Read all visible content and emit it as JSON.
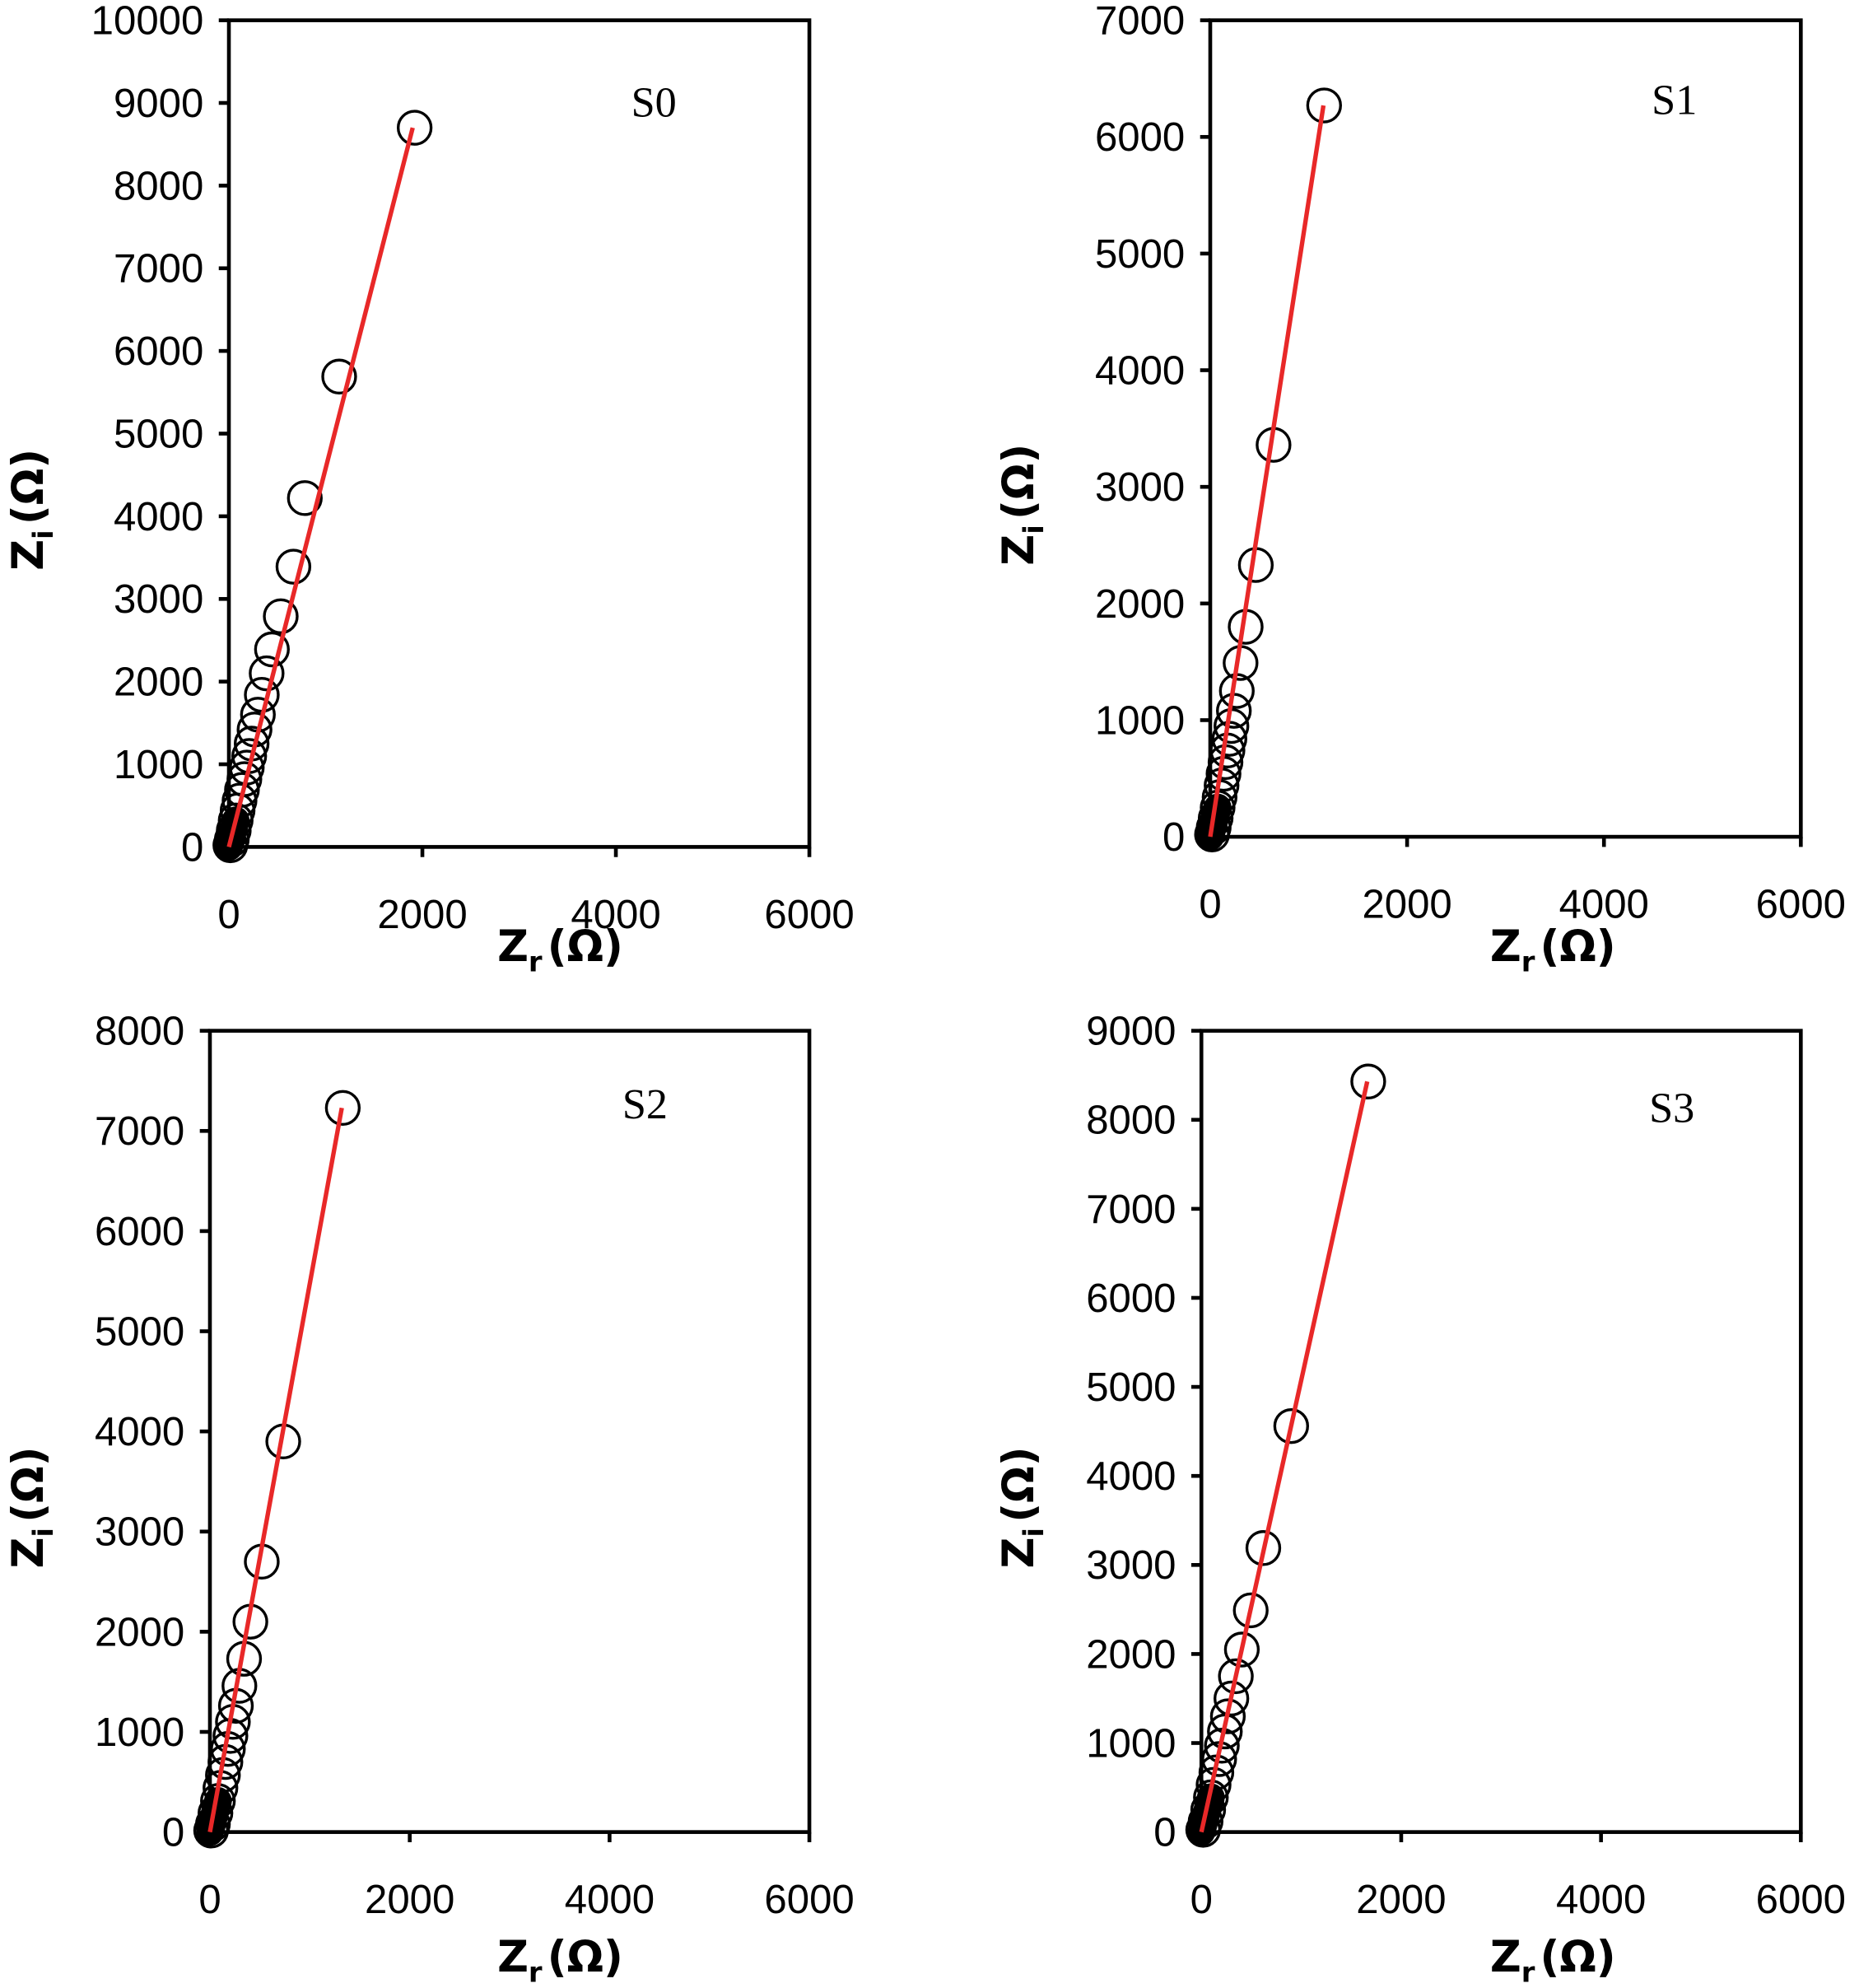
{
  "chart_data": [
    {
      "type": "scatter",
      "panel": "S0",
      "title": "",
      "annotation": "S0",
      "xlabel": "Z_r (Ω)",
      "ylabel": "Z_i (Ω)",
      "xlim": [
        0,
        6000
      ],
      "ylim": [
        0,
        10000
      ],
      "xticks": [
        0,
        2000,
        4000,
        6000
      ],
      "yticks": [
        0,
        1000,
        2000,
        3000,
        4000,
        5000,
        6000,
        7000,
        8000,
        9000,
        10000
      ],
      "grid": false,
      "legend": null,
      "series": [
        {
          "name": "data",
          "style": "open circle",
          "x": [
            1920,
            1140,
            785,
            667,
            536,
            445,
            390,
            340,
            300,
            265,
            235,
            210,
            185,
            160,
            135,
            110,
            90,
            70,
            50,
            30,
            15
          ],
          "y": [
            8700,
            5690,
            4220,
            3390,
            2790,
            2390,
            2100,
            1840,
            1600,
            1420,
            1250,
            1100,
            960,
            820,
            690,
            560,
            440,
            320,
            200,
            90,
            20
          ]
        },
        {
          "name": "linear fit",
          "style": "red line",
          "color": "#e82828",
          "x": [
            0,
            1900
          ],
          "y": [
            0,
            8700
          ]
        }
      ]
    },
    {
      "type": "scatter",
      "panel": "S1",
      "title": "",
      "annotation": "S1",
      "xlabel": "Z_r (Ω)",
      "ylabel": "Z_i (Ω)",
      "xlim": [
        0,
        6000
      ],
      "ylim": [
        0,
        7000
      ],
      "xticks": [
        0,
        2000,
        4000,
        6000
      ],
      "yticks": [
        0,
        1000,
        2000,
        3000,
        4000,
        5000,
        6000,
        7000
      ],
      "grid": false,
      "legend": null,
      "series": [
        {
          "name": "data",
          "style": "open circle",
          "x": [
            1157,
            643,
            463,
            360,
            308,
            270,
            240,
            215,
            195,
            175,
            155,
            135,
            115,
            95,
            75,
            55,
            35,
            18
          ],
          "y": [
            6270,
            3360,
            2330,
            1800,
            1490,
            1250,
            1080,
            950,
            840,
            740,
            640,
            540,
            440,
            340,
            250,
            160,
            80,
            20
          ]
        },
        {
          "name": "linear fit",
          "style": "red line",
          "color": "#e82828",
          "x": [
            0,
            1150
          ],
          "y": [
            0,
            6270
          ]
        }
      ]
    },
    {
      "type": "scatter",
      "panel": "S2",
      "title": "",
      "annotation": "S2",
      "xlabel": "Z_r (Ω)",
      "ylabel": "Z_i (Ω)",
      "xlim": [
        0,
        6000
      ],
      "ylim": [
        0,
        8000
      ],
      "xticks": [
        0,
        2000,
        4000,
        6000
      ],
      "yticks": [
        0,
        1000,
        2000,
        3000,
        4000,
        5000,
        6000,
        7000,
        8000
      ],
      "grid": false,
      "legend": null,
      "series": [
        {
          "name": "data",
          "style": "open circle",
          "x": [
            1330,
            734,
            519,
            405,
            342,
            295,
            260,
            230,
            205,
            180,
            155,
            130,
            105,
            80,
            55,
            30,
            12
          ],
          "y": [
            7230,
            3900,
            2700,
            2100,
            1730,
            1460,
            1260,
            1100,
            960,
            830,
            700,
            570,
            440,
            310,
            190,
            80,
            15
          ]
        },
        {
          "name": "linear fit",
          "style": "red line",
          "color": "#e82828",
          "x": [
            0,
            1320
          ],
          "y": [
            0,
            7230
          ]
        }
      ]
    },
    {
      "type": "scatter",
      "panel": "S3",
      "title": "",
      "annotation": "S3",
      "xlabel": "Z_r (Ω)",
      "ylabel": "Z_i (Ω)",
      "xlim": [
        0,
        6000
      ],
      "ylim": [
        0,
        9000
      ],
      "xticks": [
        0,
        2000,
        4000,
        6000
      ],
      "yticks": [
        0,
        1000,
        2000,
        3000,
        4000,
        5000,
        6000,
        7000,
        8000,
        9000
      ],
      "grid": false,
      "legend": null,
      "series": [
        {
          "name": "data",
          "style": "open circle",
          "x": [
            1670,
            899,
            620,
            494,
            405,
            345,
            300,
            265,
            235,
            205,
            178,
            150,
            122,
            95,
            68,
            42,
            18
          ],
          "y": [
            8430,
            4560,
            3190,
            2490,
            2050,
            1750,
            1500,
            1300,
            1130,
            970,
            820,
            670,
            530,
            390,
            250,
            120,
            25
          ]
        },
        {
          "name": "linear fit",
          "style": "red line",
          "color": "#e82828",
          "x": [
            0,
            1660
          ],
          "y": [
            0,
            8430
          ]
        }
      ]
    }
  ],
  "panels": {
    "s0": {
      "label": "S0",
      "x_title_main": "Z",
      "x_title_sub": "r",
      "x_title_unit": "(Ω)",
      "y_title_main": "Z",
      "y_title_sub": "i",
      "y_title_unit": "(Ω)",
      "yticks": [
        "0",
        "1000",
        "2000",
        "3000",
        "4000",
        "5000",
        "6000",
        "7000",
        "8000",
        "9000",
        "10000"
      ],
      "xticks": [
        "0",
        "2000",
        "4000",
        "6000"
      ]
    },
    "s1": {
      "label": "S1",
      "x_title_main": "Z",
      "x_title_sub": "r",
      "x_title_unit": "(Ω)",
      "y_title_main": "Z",
      "y_title_sub": "i",
      "y_title_unit": "(Ω)",
      "yticks": [
        "0",
        "1000",
        "2000",
        "3000",
        "4000",
        "5000",
        "6000",
        "7000"
      ],
      "xticks": [
        "0",
        "2000",
        "4000",
        "6000"
      ]
    },
    "s2": {
      "label": "S2",
      "x_title_main": "Z",
      "x_title_sub": "r",
      "x_title_unit": "(Ω)",
      "y_title_main": "Z",
      "y_title_sub": "i",
      "y_title_unit": "(Ω)",
      "yticks": [
        "0",
        "1000",
        "2000",
        "3000",
        "4000",
        "5000",
        "6000",
        "7000",
        "8000"
      ],
      "xticks": [
        "0",
        "2000",
        "4000",
        "6000"
      ]
    },
    "s3": {
      "label": "S3",
      "x_title_main": "Z",
      "x_title_sub": "r",
      "x_title_unit": "(Ω)",
      "y_title_main": "Z",
      "y_title_sub": "i",
      "y_title_unit": "(Ω)",
      "yticks": [
        "0",
        "1000",
        "2000",
        "3000",
        "4000",
        "5000",
        "6000",
        "7000",
        "8000",
        "9000"
      ],
      "xticks": [
        "0",
        "2000",
        "4000",
        "6000"
      ]
    }
  },
  "colors": {
    "fit_line": "#e82828",
    "marker": "#000000",
    "axes": "#000000",
    "background": "#ffffff"
  }
}
